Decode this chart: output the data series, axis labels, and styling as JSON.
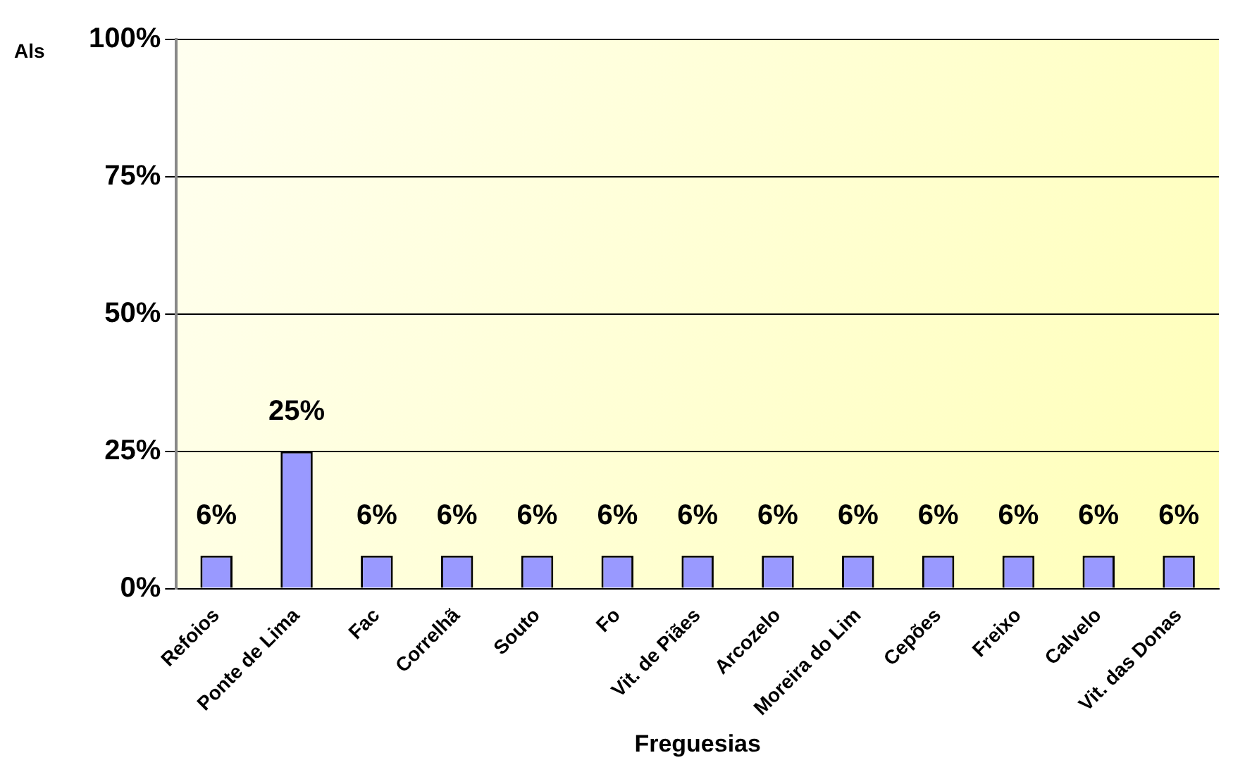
{
  "chart_data": {
    "type": "bar",
    "ylabel": "Als",
    "xlabel": "Freguesias",
    "categories": [
      "Refoios",
      "Ponte de Lima",
      "Fac",
      "Correlhã",
      "Souto",
      "Fo",
      "Vit. de Piães",
      "Arcozelo",
      "Moreira do Lim",
      "Cepões",
      "Freixo",
      "Calvelo",
      "Vit. das Donas"
    ],
    "values": [
      6,
      25,
      6,
      6,
      6,
      6,
      6,
      6,
      6,
      6,
      6,
      6,
      6
    ],
    "value_labels": [
      "6%",
      "25%",
      "6%",
      "6%",
      "6%",
      "6%",
      "6%",
      "6%",
      "6%",
      "6%",
      "6%",
      "6%",
      "6%"
    ],
    "color": "#9999ff",
    "ylim": [
      0,
      100
    ],
    "yticks": [
      {
        "value": 0,
        "label": "0%"
      },
      {
        "value": 25,
        "label": "25%"
      },
      {
        "value": 50,
        "label": "50%"
      },
      {
        "value": 75,
        "label": "75%"
      },
      {
        "value": 100,
        "label": "100%"
      }
    ],
    "grid": "y",
    "legend": false
  }
}
